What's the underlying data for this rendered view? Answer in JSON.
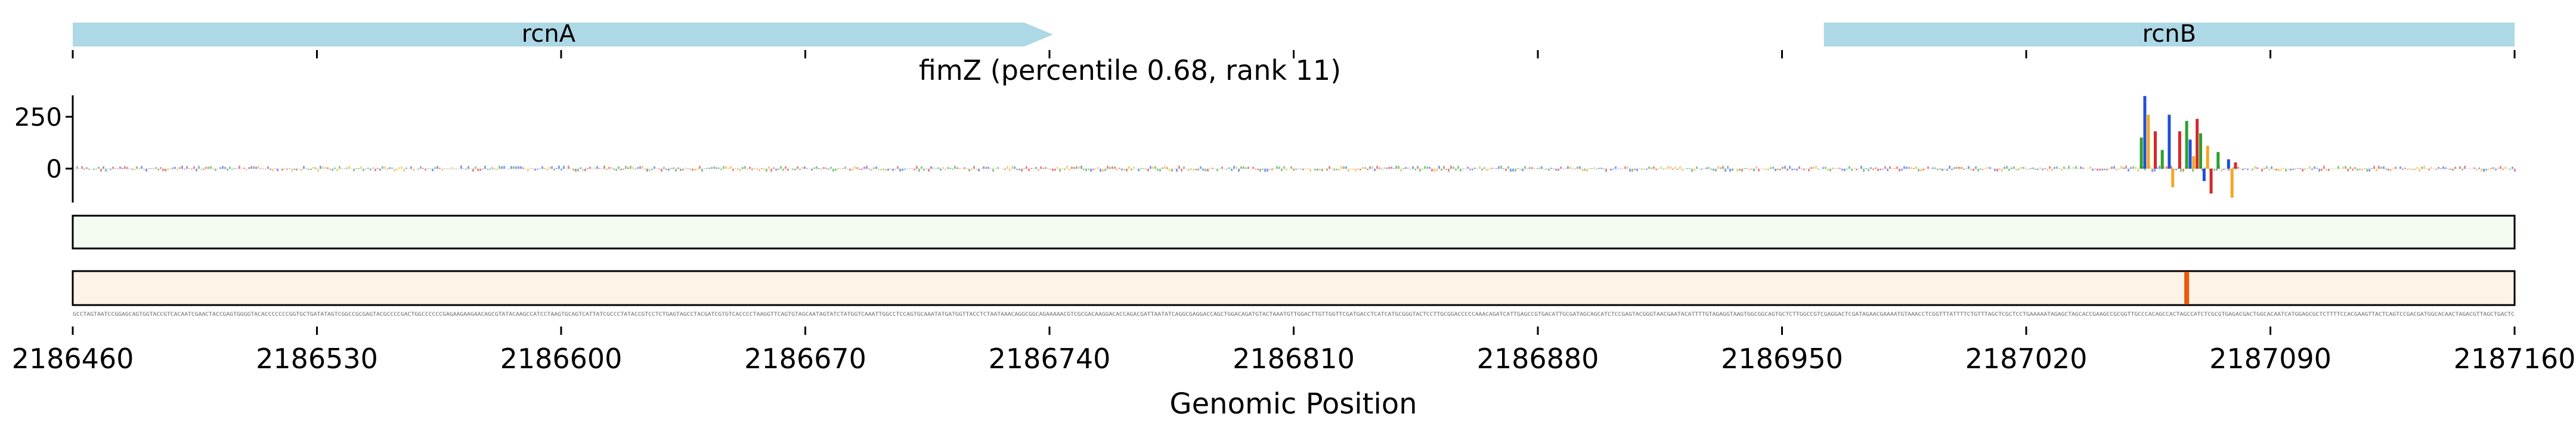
{
  "chart_data": {
    "type": "genome-track",
    "title": "fimZ (percentile 0.68, rank 11)",
    "xlabel": "Genomic Position",
    "xlim": [
      2186460,
      2187160
    ],
    "xticks": [
      "2186460",
      "2186530",
      "2186600",
      "2186670",
      "2186740",
      "2186810",
      "2186880",
      "2186950",
      "2187020",
      "2187090",
      "2187160"
    ],
    "genes": [
      {
        "name": "rcnA",
        "start": 2186460,
        "end": 2186741,
        "strand": "+"
      },
      {
        "name": "rcnB",
        "start": 2186962,
        "end": 2187160,
        "strand": "+"
      }
    ],
    "attribution_yticks": [
      "250",
      "0"
    ],
    "attribution_ylim": [
      -150,
      400
    ],
    "attribution_peaks": [
      {
        "x": 2187053,
        "y": 150
      },
      {
        "x": 2187054,
        "y": 350
      },
      {
        "x": 2187055,
        "y": 260
      },
      {
        "x": 2187057,
        "y": 180
      },
      {
        "x": 2187059,
        "y": 90
      },
      {
        "x": 2187061,
        "y": 260
      },
      {
        "x": 2187062,
        "y": -90
      },
      {
        "x": 2187064,
        "y": 180
      },
      {
        "x": 2187066,
        "y": 230
      },
      {
        "x": 2187067,
        "y": 140
      },
      {
        "x": 2187068,
        "y": 60
      },
      {
        "x": 2187069,
        "y": 240
      },
      {
        "x": 2187070,
        "y": 170
      },
      {
        "x": 2187071,
        "y": -60
      },
      {
        "x": 2187072,
        "y": 110
      },
      {
        "x": 2187073,
        "y": -120
      },
      {
        "x": 2187075,
        "y": 80
      },
      {
        "x": 2187078,
        "y": 45
      },
      {
        "x": 2187079,
        "y": -140
      },
      {
        "x": 2187080,
        "y": 30
      }
    ],
    "mark_track_2": {
      "x": 2187066,
      "color": "#e8590c"
    },
    "colors": {
      "gene": "#add8e6",
      "track1_fill": "#f4fbf1",
      "track2_fill": "#fdf3e6",
      "base_A": "#2ca02c",
      "base_C": "#1f4fd8",
      "base_G": "#f5a623",
      "base_T": "#d62728"
    }
  }
}
